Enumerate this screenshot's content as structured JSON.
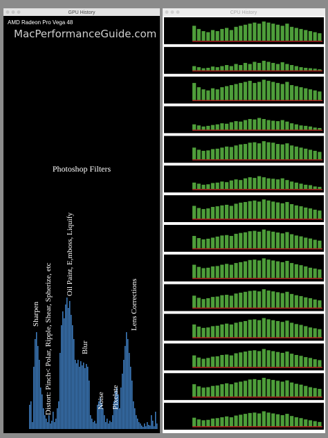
{
  "gpu_window": {
    "title": "GPU History",
    "gpu_name": "AMD Radeon Pro Vega 48",
    "watermark": "MacPerformanceGuide.com",
    "heading": "Photoshop Filters",
    "labels": [
      "Sharpen",
      "Distort: Pinch< Polar, Ripple, Shear, Spherize, etc",
      "Oil Paint, E,mboss, Liquify",
      "Blur",
      "Noise",
      "Pixelate",
      "Lens Corrections"
    ],
    "values": [
      35,
      40,
      10,
      90,
      130,
      140,
      120,
      100,
      60,
      50,
      30,
      20,
      15,
      10,
      20,
      8,
      12,
      25,
      10,
      15,
      30,
      40,
      110,
      150,
      170,
      160,
      180,
      190,
      175,
      185,
      165,
      150,
      130,
      100,
      95,
      100,
      90,
      98,
      92,
      96,
      88,
      94,
      90,
      70,
      20,
      15,
      10,
      12,
      8,
      35,
      40,
      45,
      38,
      30,
      20,
      10,
      15,
      8,
      12,
      10,
      20,
      40,
      55,
      60,
      50,
      30,
      60,
      80,
      100,
      120,
      140,
      130,
      110,
      90,
      70,
      40,
      30,
      20,
      15,
      10,
      8,
      5,
      3,
      8,
      4,
      10,
      6,
      5,
      20,
      12,
      4,
      25,
      8
    ]
  },
  "cpu_window": {
    "title": "CPU History",
    "panels": [
      {
        "values": [
          70,
          55,
          45,
          40,
          50,
          45,
          55,
          60,
          50,
          65,
          70,
          75,
          80,
          85,
          80,
          90,
          85,
          80,
          75,
          70,
          80,
          65,
          60,
          55,
          50,
          45,
          40,
          35
        ]
      },
      {
        "values": [
          20,
          15,
          10,
          12,
          18,
          15,
          20,
          25,
          20,
          30,
          25,
          35,
          30,
          40,
          35,
          45,
          40,
          35,
          30,
          38,
          30,
          25,
          20,
          15,
          12,
          10,
          8,
          5
        ]
      },
      {
        "values": [
          80,
          60,
          50,
          45,
          55,
          50,
          60,
          65,
          70,
          75,
          80,
          85,
          90,
          80,
          85,
          95,
          90,
          85,
          80,
          75,
          85,
          70,
          65,
          60,
          55,
          50,
          45,
          40
        ]
      },
      {
        "values": [
          25,
          20,
          15,
          18,
          22,
          25,
          30,
          28,
          35,
          40,
          38,
          45,
          50,
          48,
          55,
          50,
          45,
          42,
          40,
          45,
          38,
          30,
          25,
          20,
          18,
          15,
          10,
          8
        ]
      },
      {
        "values": [
          55,
          45,
          40,
          42,
          48,
          50,
          55,
          60,
          58,
          65,
          70,
          72,
          78,
          80,
          75,
          85,
          80,
          78,
          72,
          70,
          75,
          65,
          60,
          55,
          50,
          45,
          40,
          35
        ]
      },
      {
        "values": [
          30,
          25,
          20,
          22,
          28,
          30,
          35,
          32,
          40,
          45,
          42,
          50,
          55,
          52,
          60,
          55,
          50,
          48,
          45,
          50,
          42,
          35,
          30,
          25,
          20,
          18,
          12,
          10
        ]
      },
      {
        "values": [
          60,
          50,
          45,
          48,
          55,
          58,
          62,
          65,
          60,
          70,
          75,
          78,
          82,
          85,
          80,
          90,
          85,
          80,
          76,
          72,
          78,
          68,
          62,
          58,
          52,
          48,
          42,
          38
        ]
      },
      {
        "values": [
          58,
          48,
          42,
          45,
          50,
          55,
          60,
          62,
          58,
          68,
          72,
          75,
          80,
          82,
          78,
          88,
          82,
          78,
          74,
          70,
          76,
          66,
          60,
          56,
          50,
          46,
          40,
          36
        ]
      },
      {
        "values": [
          62,
          52,
          46,
          48,
          54,
          56,
          62,
          66,
          62,
          70,
          74,
          78,
          84,
          86,
          82,
          92,
          86,
          82,
          78,
          74,
          80,
          70,
          64,
          60,
          54,
          48,
          44,
          40
        ]
      },
      {
        "values": [
          56,
          46,
          40,
          44,
          50,
          52,
          58,
          60,
          56,
          66,
          70,
          74,
          78,
          80,
          76,
          86,
          80,
          76,
          72,
          68,
          74,
          64,
          58,
          54,
          48,
          44,
          38,
          34
        ]
      },
      {
        "values": [
          60,
          50,
          44,
          46,
          52,
          54,
          60,
          64,
          60,
          68,
          72,
          76,
          82,
          84,
          80,
          90,
          84,
          80,
          76,
          72,
          78,
          68,
          62,
          58,
          52,
          46,
          42,
          38
        ]
      },
      {
        "values": [
          54,
          44,
          38,
          42,
          48,
          50,
          56,
          58,
          54,
          64,
          68,
          72,
          76,
          78,
          74,
          84,
          78,
          74,
          70,
          66,
          72,
          62,
          56,
          52,
          46,
          42,
          36,
          32
        ]
      },
      {
        "values": [
          58,
          48,
          42,
          44,
          50,
          52,
          58,
          62,
          58,
          66,
          70,
          74,
          80,
          82,
          78,
          88,
          82,
          78,
          74,
          70,
          76,
          66,
          60,
          56,
          50,
          44,
          40,
          36
        ]
      },
      {
        "values": [
          40,
          32,
          28,
          30,
          36,
          38,
          42,
          46,
          42,
          50,
          54,
          58,
          62,
          64,
          60,
          70,
          64,
          60,
          56,
          52,
          58,
          48,
          42,
          38,
          32,
          28,
          24,
          20
        ]
      }
    ]
  }
}
